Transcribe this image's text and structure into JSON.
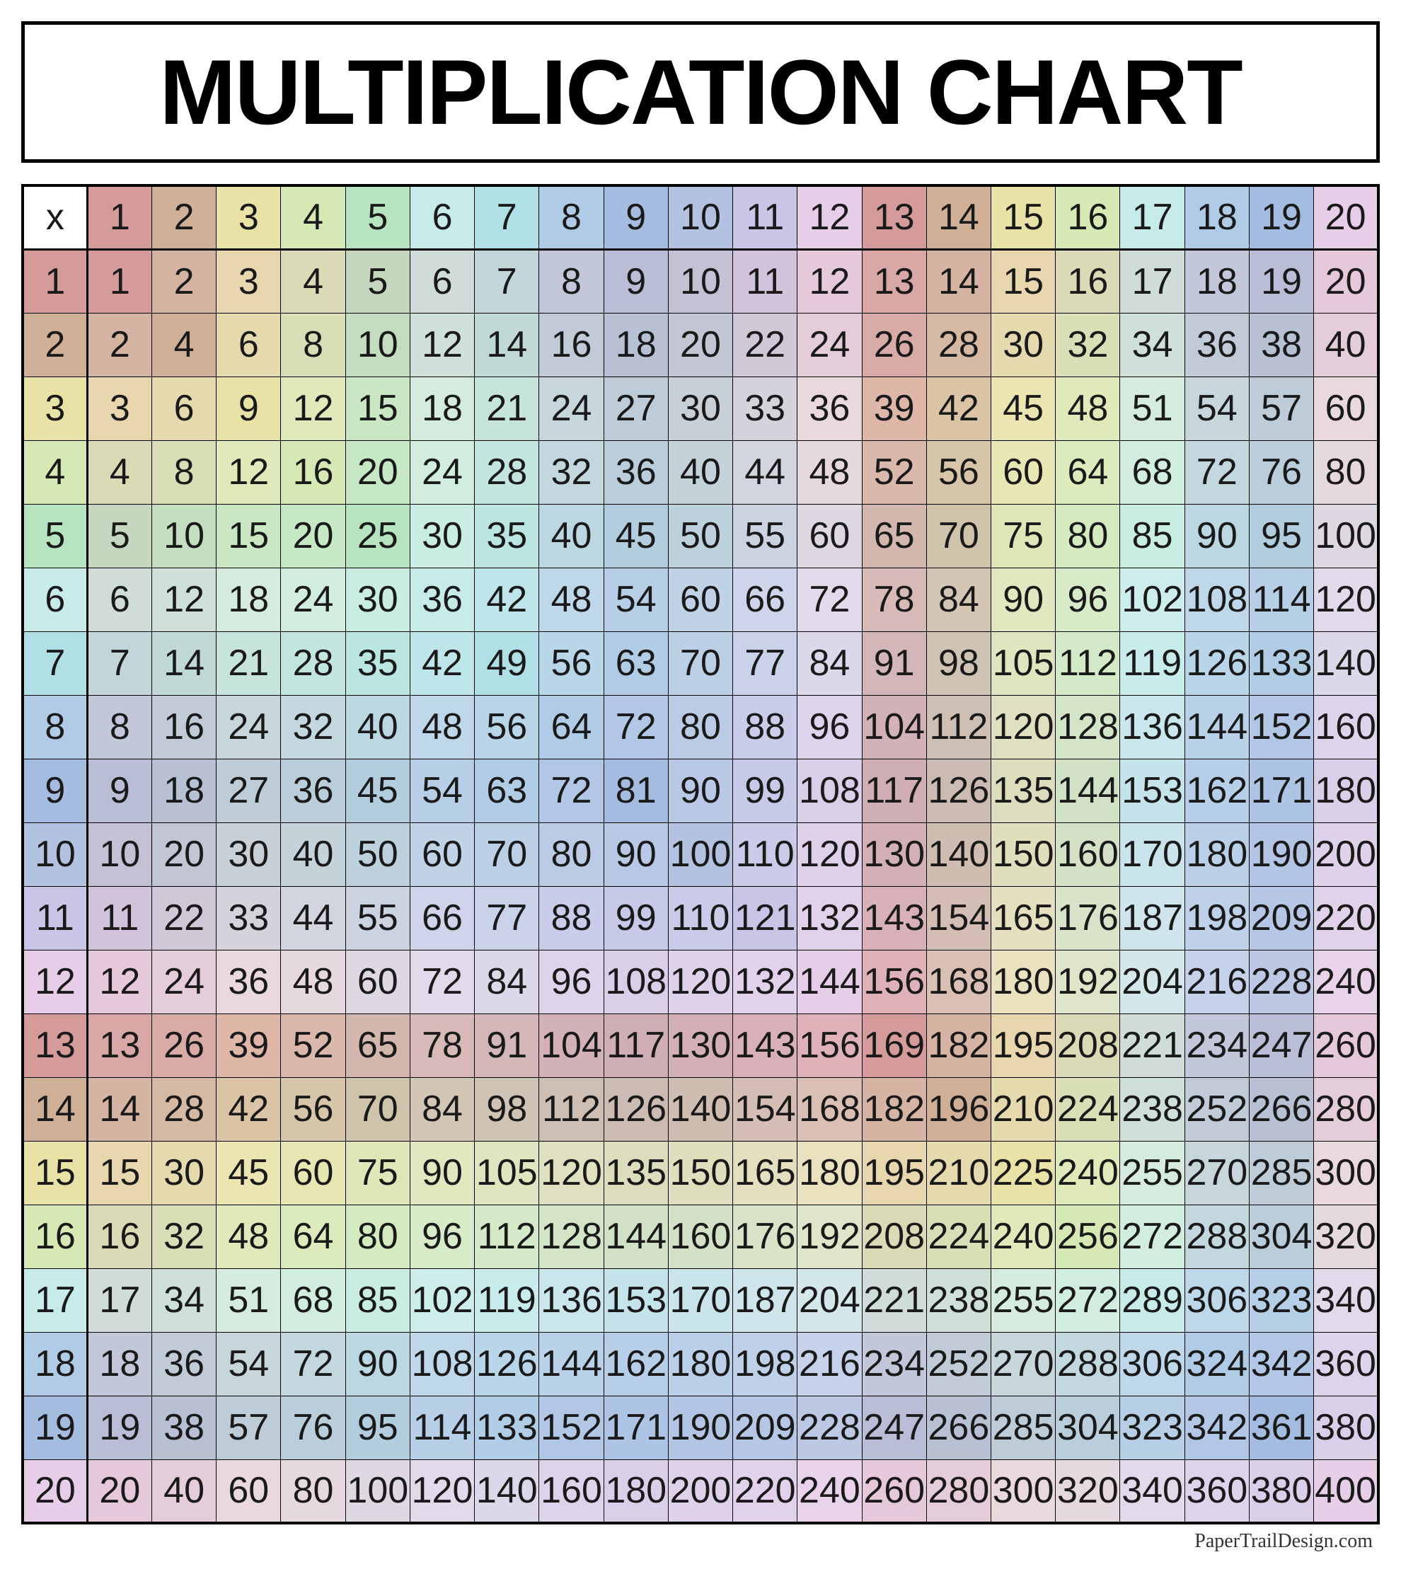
{
  "title": "MULTIPLICATION CHART",
  "corner_label": "x",
  "size": 20,
  "footer": "PaperTrailDesign.com",
  "column_colors": [
    "#d59b9b",
    "#cfaf95",
    "#e8e2a6",
    "#d6e8b3",
    "#b6e4c1",
    "#c6ebe9",
    "#b0e0e6",
    "#b0cbe6",
    "#a3bce0",
    "#b3c2e0",
    "#c8c5e6",
    "#e6cde8",
    "#d59b9b",
    "#cfaf95",
    "#e8e2a6",
    "#d6e8b3",
    "#c6ebe9",
    "#b0cbe6",
    "#a3bce0",
    "#e6cde8"
  ],
  "diagonal_saturation": 1.0,
  "background_color": "#ffffff",
  "cell_text_color": "#1a1a1a",
  "title_fontsize": 130,
  "cell_fontsize": 52,
  "footer_fontsize": 28
}
